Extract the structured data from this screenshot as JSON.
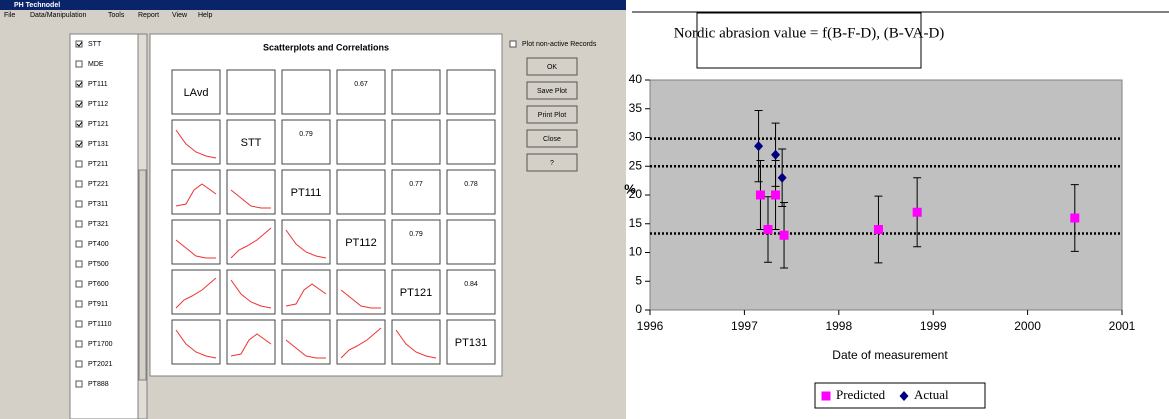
{
  "app": {
    "title": "PH Technodel",
    "menu": [
      "File",
      "Data/Manipulation",
      "Tools",
      "Report",
      "View",
      "Help"
    ],
    "records": [
      {
        "label": "STT",
        "checked": true
      },
      {
        "label": "MDE",
        "checked": false
      },
      {
        "label": "PT111",
        "checked": true
      },
      {
        "label": "PT112",
        "checked": true
      },
      {
        "label": "PT121",
        "checked": true
      },
      {
        "label": "PT131",
        "checked": true
      },
      {
        "label": "PT211",
        "checked": false
      },
      {
        "label": "PT221",
        "checked": false
      },
      {
        "label": "PT311",
        "checked": false
      },
      {
        "label": "PT321",
        "checked": false
      },
      {
        "label": "PT400",
        "checked": false
      },
      {
        "label": "PT500",
        "checked": false
      },
      {
        "label": "PT600",
        "checked": false
      },
      {
        "label": "PT911",
        "checked": false
      },
      {
        "label": "PT1110",
        "checked": false
      },
      {
        "label": "PT1700",
        "checked": false
      },
      {
        "label": "PT2021",
        "checked": false
      },
      {
        "label": "PT888",
        "checked": false
      }
    ],
    "matrix": {
      "title": "Scatterplots and Correlations",
      "rows": [
        {
          "label": "LAvd",
          "correlations": [
            null,
            null,
            "0.67",
            null,
            null
          ]
        },
        {
          "label": "STT",
          "correlations": [
            "0.79",
            null,
            null,
            null
          ]
        },
        {
          "label": "PT111",
          "correlations": [
            null,
            "0.77",
            "0.78"
          ]
        },
        {
          "label": "PT112",
          "correlations": [
            "0.79",
            null
          ]
        },
        {
          "label": "PT121",
          "correlations": [
            "0.84"
          ]
        },
        {
          "label": "PT131",
          "correlations": []
        }
      ]
    },
    "option": "Plot non-active Records",
    "buttons": [
      "OK",
      "Save Plot",
      "Print Plot",
      "Close",
      "?"
    ]
  },
  "chart_data": {
    "type": "scatter",
    "title": "Nordic abrasion value = f(B-F-D), (B-VA-D)",
    "x_label": "Date of measurement",
    "y_label": "%",
    "xlim": [
      1996,
      2001
    ],
    "xticks": [
      1996,
      1997,
      1998,
      1999,
      2000,
      2001
    ],
    "ylim": [
      0,
      40
    ],
    "yticks": [
      0,
      5,
      10,
      15,
      20,
      25,
      30,
      35,
      40
    ],
    "reference_lines": [
      13.3,
      25,
      29.8
    ],
    "plot_background": "#c0c0c0",
    "series": [
      {
        "name": "Predicted",
        "color": "#ff00ff",
        "marker": "square",
        "x": [
          1997.17,
          1997.25,
          1997.33,
          1997.42,
          1998.42,
          1998.83,
          2000.5
        ],
        "values": [
          20,
          14,
          20,
          13,
          14,
          17,
          16
        ],
        "errors": [
          6,
          5.7,
          6,
          5.7,
          5.8,
          6,
          5.8
        ]
      },
      {
        "name": "Actual",
        "color": "#000080",
        "marker": "diamond",
        "x": [
          1997.15,
          1997.33,
          1997.4
        ],
        "values": [
          28.5,
          27,
          23
        ],
        "errors": [
          6.2,
          5.5,
          5
        ]
      }
    ]
  }
}
